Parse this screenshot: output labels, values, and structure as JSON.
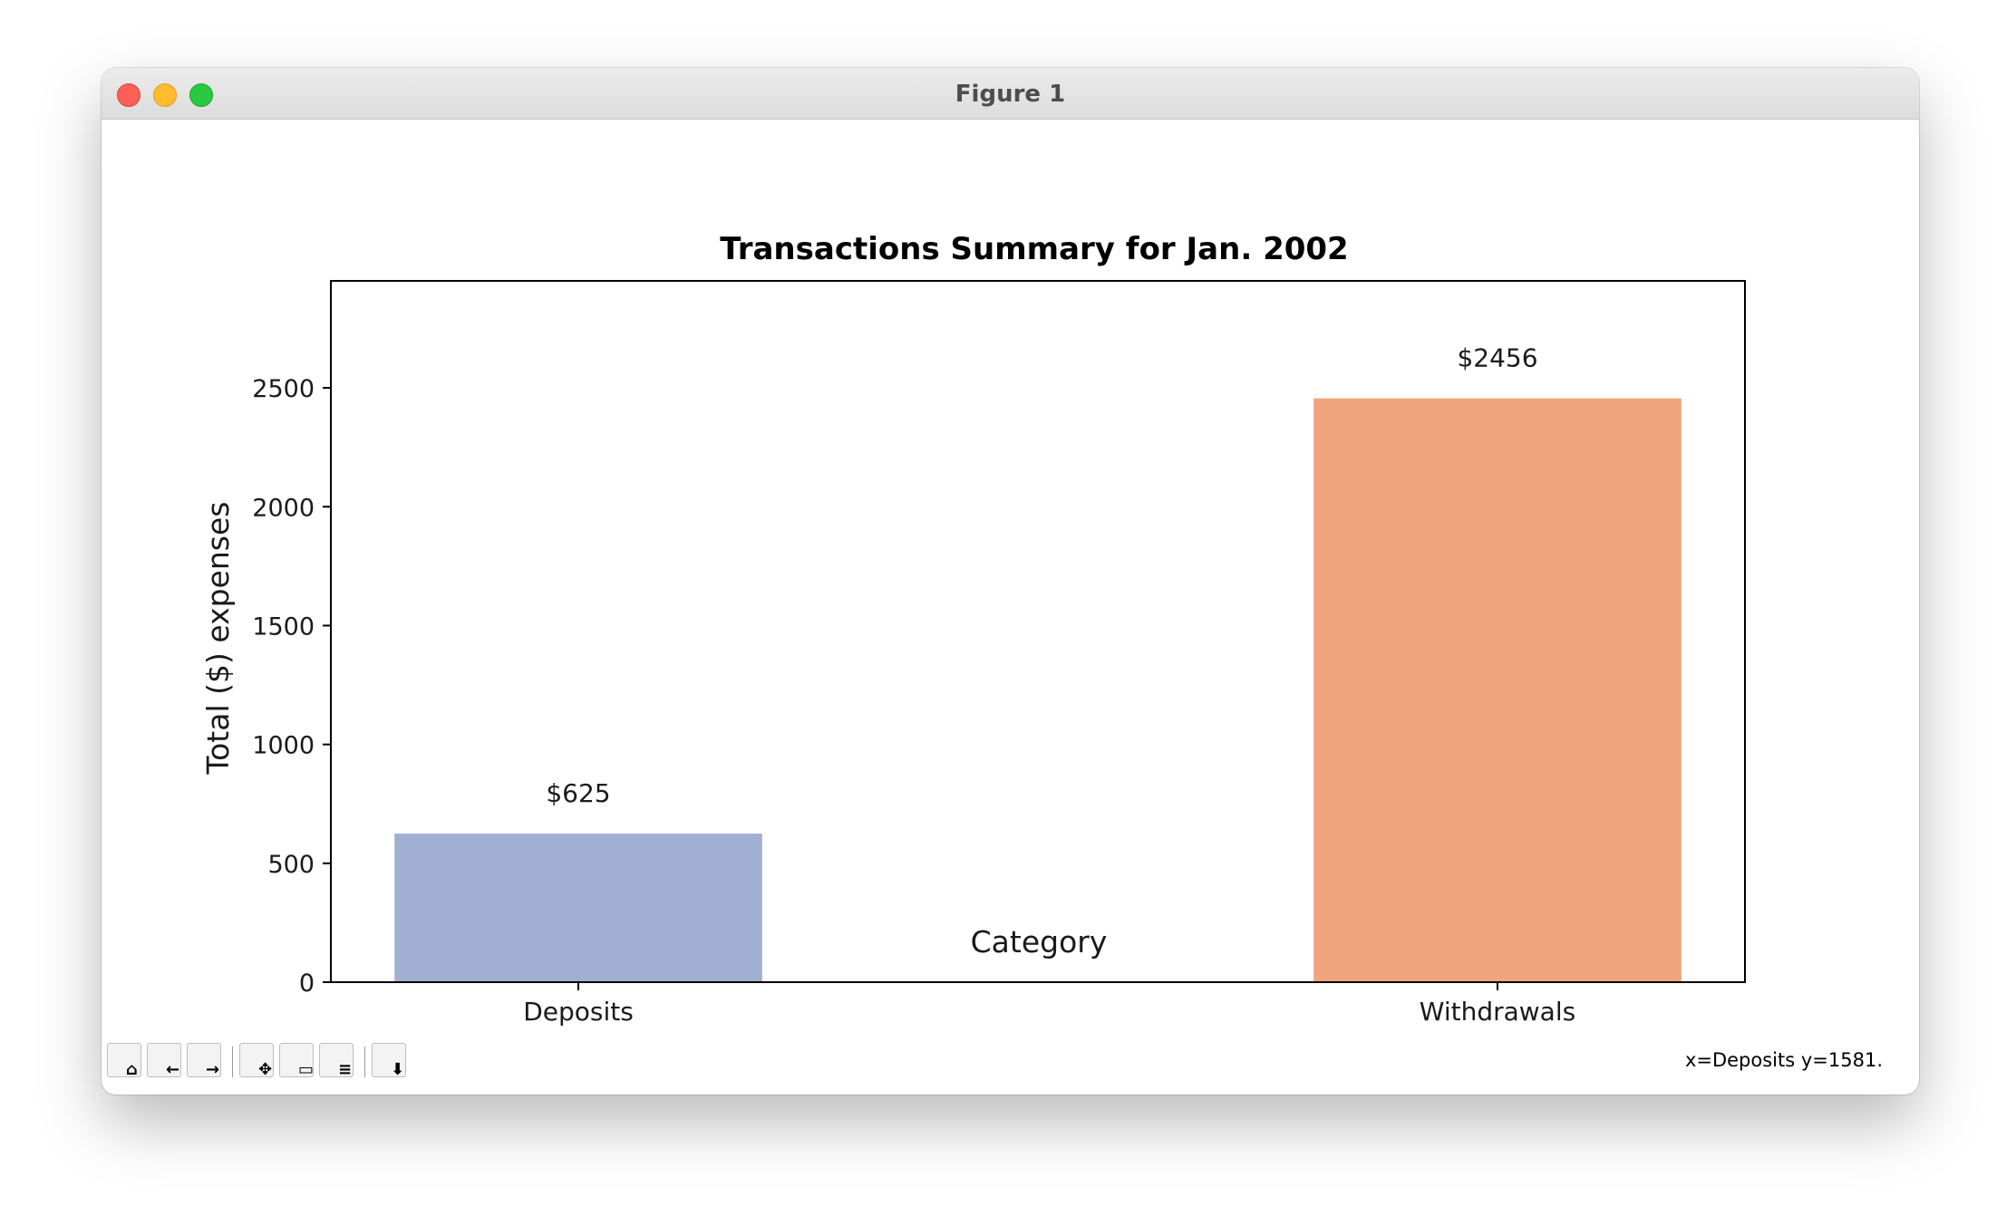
{
  "window": {
    "title": "Figure 1"
  },
  "toolbar": {
    "buttons": [
      {
        "name": "home-button",
        "icon": "home-icon"
      },
      {
        "name": "back-button",
        "icon": "back-arrow-icon"
      },
      {
        "name": "forward-button",
        "icon": "forward-arrow-icon"
      },
      {
        "name": "pan-button",
        "icon": "move-icon"
      },
      {
        "name": "zoom-button",
        "icon": "zoom-rect-icon"
      },
      {
        "name": "subplots-button",
        "icon": "sliders-icon"
      },
      {
        "name": "save-button",
        "icon": "save-icon"
      }
    ]
  },
  "status": {
    "coords": "x=Deposits y=1581."
  },
  "chart_data": {
    "type": "bar",
    "title": "Transactions Summary for Jan. 2002",
    "xlabel": "Category",
    "ylabel": "Total ($) expenses",
    "categories": [
      "Deposits",
      "Withdrawals"
    ],
    "values": [
      625,
      2456
    ],
    "value_labels": [
      "$625",
      "$2456"
    ],
    "colors": [
      "#a1afd3",
      "#f0a57e"
    ],
    "ylim": [
      0,
      2950
    ],
    "yticks": [
      0,
      500,
      1000,
      1500,
      2000,
      2500
    ],
    "grid": false
  }
}
